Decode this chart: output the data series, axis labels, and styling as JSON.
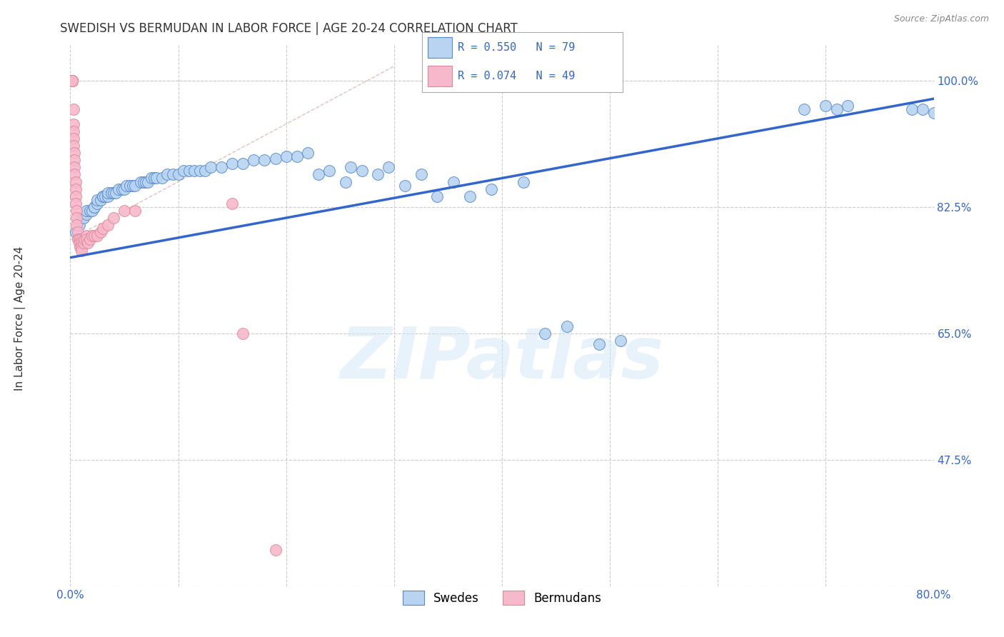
{
  "title": "SWEDISH VS BERMUDAN IN LABOR FORCE | AGE 20-24 CORRELATION CHART",
  "source": "Source: ZipAtlas.com",
  "ylabel": "In Labor Force | Age 20-24",
  "xlim": [
    0.0,
    0.8
  ],
  "ylim": [
    0.3,
    1.05
  ],
  "xticks": [
    0.0,
    0.1,
    0.2,
    0.3,
    0.4,
    0.5,
    0.6,
    0.7,
    0.8
  ],
  "yticks": [
    0.475,
    0.65,
    0.825,
    1.0
  ],
  "ytick_labels": [
    "47.5%",
    "65.0%",
    "82.5%",
    "100.0%"
  ],
  "grid_color": "#cccccc",
  "background_color": "#ffffff",
  "swedish_color": "#b8d4f0",
  "bermudan_color": "#f8b8cc",
  "swedish_edge_color": "#5588cc",
  "bermudan_edge_color": "#dd8899",
  "trend_swedish_color": "#3366cc",
  "diagonal_color": "#ddbbbb",
  "R_swedish": 0.55,
  "N_swedish": 79,
  "R_bermudan": 0.074,
  "N_bermudan": 49,
  "legend_label_swedish": "Swedes",
  "legend_label_bermudan": "Bermudans",
  "watermark": "ZIPatlas",
  "swedish_x": [
    0.005,
    0.008,
    0.01,
    0.012,
    0.015,
    0.015,
    0.018,
    0.02,
    0.022,
    0.022,
    0.025,
    0.025,
    0.028,
    0.03,
    0.03,
    0.032,
    0.035,
    0.035,
    0.038,
    0.04,
    0.042,
    0.045,
    0.048,
    0.05,
    0.052,
    0.055,
    0.058,
    0.06,
    0.065,
    0.068,
    0.07,
    0.072,
    0.075,
    0.078,
    0.08,
    0.085,
    0.09,
    0.095,
    0.1,
    0.105,
    0.11,
    0.115,
    0.12,
    0.125,
    0.13,
    0.14,
    0.15,
    0.16,
    0.17,
    0.18,
    0.19,
    0.2,
    0.21,
    0.22,
    0.23,
    0.24,
    0.255,
    0.26,
    0.27,
    0.285,
    0.295,
    0.31,
    0.325,
    0.34,
    0.355,
    0.37,
    0.39,
    0.42,
    0.44,
    0.46,
    0.49,
    0.51,
    0.68,
    0.7,
    0.71,
    0.72,
    0.78,
    0.79,
    0.8
  ],
  "swedish_y": [
    0.79,
    0.8,
    0.81,
    0.81,
    0.815,
    0.82,
    0.82,
    0.82,
    0.825,
    0.825,
    0.83,
    0.835,
    0.835,
    0.84,
    0.84,
    0.84,
    0.84,
    0.845,
    0.845,
    0.845,
    0.845,
    0.85,
    0.85,
    0.85,
    0.855,
    0.855,
    0.855,
    0.855,
    0.86,
    0.86,
    0.86,
    0.86,
    0.865,
    0.865,
    0.865,
    0.865,
    0.87,
    0.87,
    0.87,
    0.875,
    0.875,
    0.875,
    0.875,
    0.875,
    0.88,
    0.88,
    0.885,
    0.885,
    0.89,
    0.89,
    0.892,
    0.895,
    0.895,
    0.9,
    0.87,
    0.875,
    0.86,
    0.88,
    0.875,
    0.87,
    0.88,
    0.855,
    0.87,
    0.84,
    0.86,
    0.84,
    0.85,
    0.86,
    0.65,
    0.66,
    0.635,
    0.64,
    0.96,
    0.965,
    0.96,
    0.965,
    0.96,
    0.96,
    0.955
  ],
  "bermudan_x": [
    0.002,
    0.002,
    0.002,
    0.002,
    0.002,
    0.002,
    0.003,
    0.003,
    0.003,
    0.003,
    0.003,
    0.004,
    0.004,
    0.004,
    0.004,
    0.005,
    0.005,
    0.005,
    0.005,
    0.006,
    0.006,
    0.006,
    0.007,
    0.007,
    0.008,
    0.008,
    0.009,
    0.01,
    0.01,
    0.01,
    0.01,
    0.012,
    0.013,
    0.015,
    0.015,
    0.016,
    0.018,
    0.02,
    0.022,
    0.025,
    0.028,
    0.03,
    0.035,
    0.04,
    0.05,
    0.06,
    0.15,
    0.16,
    0.19
  ],
  "bermudan_y": [
    1.0,
    1.0,
    1.0,
    1.0,
    1.0,
    1.0,
    0.96,
    0.94,
    0.93,
    0.92,
    0.91,
    0.9,
    0.89,
    0.88,
    0.87,
    0.86,
    0.85,
    0.84,
    0.83,
    0.82,
    0.81,
    0.8,
    0.79,
    0.78,
    0.78,
    0.775,
    0.77,
    0.78,
    0.775,
    0.77,
    0.765,
    0.775,
    0.78,
    0.785,
    0.78,
    0.775,
    0.78,
    0.785,
    0.785,
    0.785,
    0.79,
    0.795,
    0.8,
    0.81,
    0.82,
    0.82,
    0.83,
    0.65,
    0.35
  ],
  "trend_line_x0": 0.0,
  "trend_line_y0": 0.755,
  "trend_line_x1": 0.8,
  "trend_line_y1": 0.975
}
